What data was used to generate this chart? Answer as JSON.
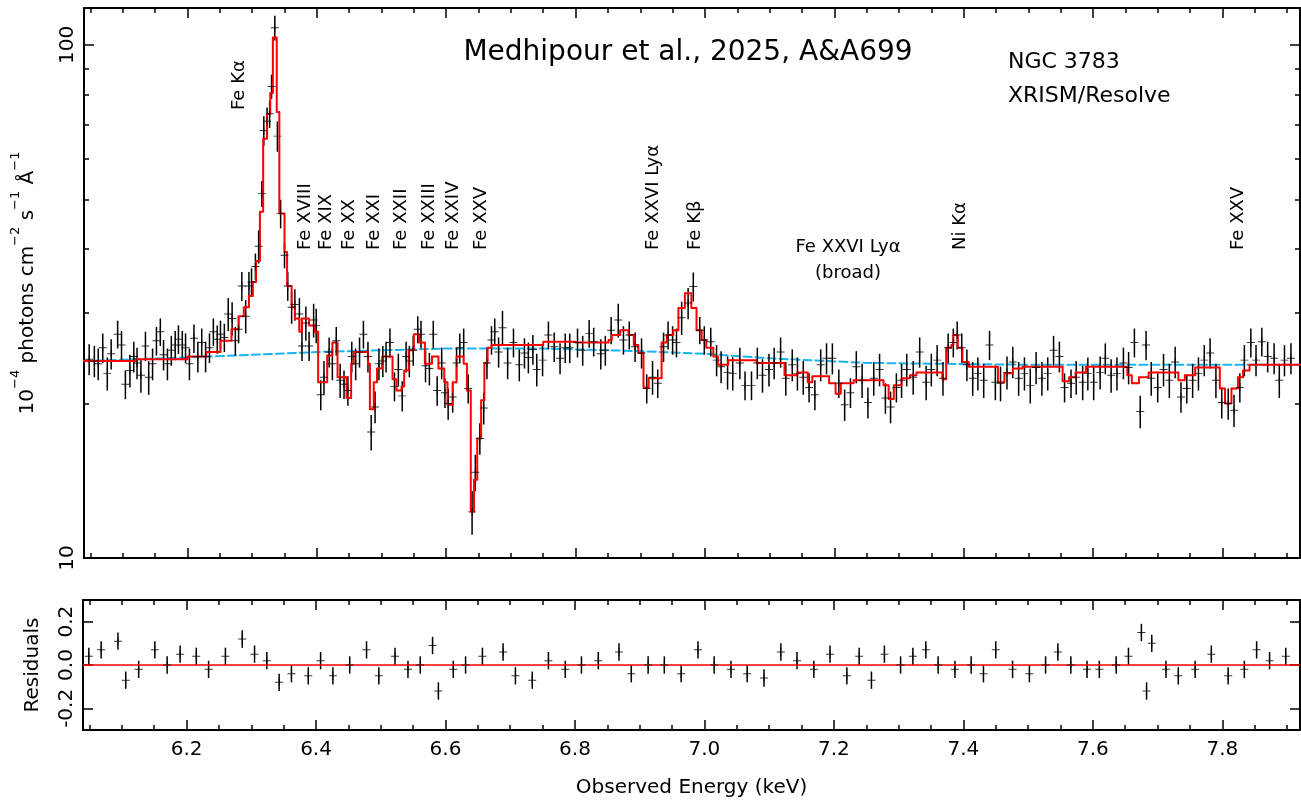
{
  "chart_data": [
    {
      "type": "scatter",
      "ylabel": "10$^{−4}$ photons cm$^{−2}$ s$^{−1}$ Å$^{−1}$",
      "xlim": [
        6.04,
        7.92
      ],
      "xticks": [
        {
          "value": 6.05,
          "label": null
        },
        {
          "value": 6.1,
          "label": null
        },
        {
          "value": 6.15,
          "label": null
        },
        6.2,
        {
          "value": 6.25,
          "label": null
        },
        {
          "value": 6.3,
          "label": null
        },
        {
          "value": 6.35,
          "label": null
        },
        6.4,
        {
          "value": 6.45,
          "label": null
        },
        {
          "value": 6.5,
          "label": null
        },
        {
          "value": 6.55,
          "label": null
        },
        6.6,
        {
          "value": 6.65,
          "label": null
        },
        {
          "value": 6.7,
          "label": null
        },
        {
          "value": 6.75,
          "label": null
        },
        6.8,
        {
          "value": 6.85,
          "label": null
        },
        {
          "value": 6.9,
          "label": null
        },
        {
          "value": 6.95,
          "label": null
        },
        7,
        {
          "value": 7.05,
          "label": null
        },
        {
          "value": 7.1,
          "label": null
        },
        {
          "value": 7.15,
          "label": null
        },
        7.2,
        {
          "value": 7.25,
          "label": null
        },
        {
          "value": 7.3,
          "label": null
        },
        {
          "value": 7.35,
          "label": null
        },
        7.4,
        {
          "value": 7.45,
          "label": null
        },
        {
          "value": 7.5,
          "label": null
        },
        {
          "value": 7.55,
          "label": null
        },
        7.6,
        {
          "value": 7.65,
          "label": null
        },
        {
          "value": 7.7,
          "label": null
        },
        {
          "value": 7.75,
          "label": null
        },
        7.8,
        {
          "value": 7.85,
          "label": null
        },
        {
          "value": 7.9,
          "label": null
        }
      ],
      "ylim": [
        10,
        118
      ],
      "yticks": [
        10,
        {
          "value": 20,
          "label": null
        },
        {
          "value": 30,
          "label": null
        },
        {
          "value": 40,
          "label": null
        },
        {
          "value": 50,
          "label": null
        },
        {
          "value": 60,
          "label": null
        },
        {
          "value": 70,
          "label": null
        },
        {
          "value": 80,
          "label": null
        },
        {
          "value": 90,
          "label": null
        },
        100
      ],
      "log": "y",
      "tick_labels": "y",
      "annotations": [
        "Medhipour et al., 2025, A&A699",
        "NGC 3783",
        "XRISM/Resolve",
        "Fe Kα",
        "Fe XVIII",
        "Fe XIX",
        "Fe XX",
        "Fe XXI",
        "Fe XXII",
        "Fe XXIII",
        "Fe XXIV",
        "Fe XXV",
        "Fe XXVI Lyα",
        "Fe Kβ",
        "Fe XXVI Lyα\n(broad)",
        "Ni Kα",
        "Fe XXV"
      ],
      "series": [
        {
          "color": "#000000",
          "x": [
            6.048,
            6.056,
            6.062,
            6.069,
            6.076,
            6.082,
            6.092,
            6.098,
            6.104,
            6.111,
            6.117,
            6.122,
            6.128,
            6.135,
            6.14,
            6.146,
            6.152,
            6.158,
            6.163,
            6.169,
            6.175,
            6.181,
            6.186,
            6.192,
            6.197,
            6.203,
            6.21,
            6.216,
            6.222,
            6.228,
            6.234,
            6.24,
            6.246,
            6.251,
            6.257,
            6.263,
            6.269,
            6.274,
            6.279,
            6.284,
            6.29,
            6.295,
            6.299,
            6.305,
            6.31,
            6.315,
            6.318,
            6.323,
            6.327,
            6.33,
            6.335,
            6.339,
            6.344,
            6.35,
            6.355,
            6.361,
            6.366,
            6.373,
            6.377,
            6.383,
            6.388,
            6.395,
            6.399,
            6.406,
            6.411,
            6.419,
            6.424,
            6.43,
            6.436,
            6.442,
            6.448,
            6.454,
            6.46,
            6.466,
            6.472,
            6.479,
            6.484,
            6.49,
            6.496,
            6.502,
            6.507,
            6.513,
            6.52,
            6.526,
            6.532,
            6.538,
            6.543,
            6.549,
            6.556,
            6.561,
            6.568,
            6.574,
            6.58,
            6.586,
            6.593,
            6.598,
            6.603,
            6.61,
            6.616,
            6.621,
            6.627,
            6.634,
            6.64,
            6.645,
            6.652,
            6.658,
            6.663,
            6.67,
            6.675,
            6.681,
            6.687,
            6.695,
            6.704,
            6.713,
            6.721,
            6.727,
            6.734,
            6.74,
            6.749,
            6.758,
            6.767,
            6.776,
            6.784,
            6.791,
            6.803,
            6.811,
            6.821,
            6.828,
            6.839,
            6.846,
            6.855,
            6.866,
            6.874,
            6.883,
            6.892,
            6.902,
            6.91,
            6.919,
            6.927,
            6.936,
            6.943,
            6.95,
            6.956,
            6.964,
            6.974,
            6.982,
            6.992,
            6.999,
            7.009,
            7.018,
            7.025,
            7.035,
            7.043,
            7.054,
            7.062,
            7.072,
            7.081,
            7.089,
            7.099,
            7.107,
            7.117,
            7.125,
            7.135,
            7.143,
            7.152,
            7.161,
            7.17,
            7.179,
            7.188,
            7.197,
            7.207,
            7.216,
            7.225,
            7.234,
            7.243,
            7.252,
            7.261,
            7.27,
            7.279,
            7.287,
            7.296,
            7.304,
            7.312,
            7.322,
            7.332,
            7.342,
            7.35,
            7.359,
            7.368,
            7.376,
            7.384,
            7.39,
            7.397,
            7.405,
            7.414,
            7.422,
            7.431,
            7.44,
            7.449,
            7.457,
            7.467,
            7.476,
            7.485,
            7.494,
            7.503,
            7.512,
            7.521,
            7.53,
            7.539,
            7.548,
            7.556,
            7.566,
            7.574,
            7.584,
            7.592,
            7.601,
            7.611,
            7.619,
            7.628,
            7.637,
            7.647,
            7.655,
            7.664,
            7.673,
            7.682,
            7.69,
            7.7,
            7.709,
            7.718,
            7.727,
            7.736,
            7.745,
            7.754,
            7.763,
            7.772,
            7.781,
            7.79,
            7.799,
            7.809,
            7.818,
            7.827,
            7.834,
            7.844,
            7.852,
            7.861,
            7.87,
            7.88,
            7.888,
            7.896,
            7.906
          ],
          "values": [
            24.4,
            24.2,
            23.9,
            25.7,
            22.9,
            25.0,
            27.3,
            26.0,
            21.8,
            23.2,
            24.7,
            24.0,
            22.7,
            25.9,
            22.5,
            23.9,
            26.5,
            27.6,
            24.9,
            23.9,
            25.4,
            26.0,
            26.7,
            26.0,
            25.7,
            23.9,
            26.8,
            24.7,
            26.3,
            24.7,
            25.7,
            27.6,
            26.7,
            27.3,
            26.9,
            29.9,
            29.3,
            26.5,
            27.9,
            33.9,
            29.6,
            33.9,
            34.5,
            37.0,
            40.5,
            51.3,
            68.1,
            71.0,
            73.4,
            83.0,
            108,
            66.4,
            46.9,
            38.9,
            33.9,
            30.8,
            31.2,
            29.9,
            25.9,
            28.7,
            25.9,
            29.1,
            28.4,
            20.8,
            22.5,
            25.2,
            23.9,
            26.5,
            22.2,
            21.8,
            21.2,
            24.7,
            23.9,
            25.2,
            27.3,
            24.7,
            17.6,
            19.7,
            23.9,
            24.2,
            24.7,
            26.3,
            21.6,
            23.3,
            20.7,
            24.7,
            24.2,
            25.4,
            27.9,
            27.3,
            23.7,
            23.4,
            27.3,
            21.2,
            24.0,
            21.0,
            20.0,
            20.6,
            24.0,
            25.7,
            26.3,
            21.4,
            12.3,
            14.7,
            17.1,
            19.6,
            24.0,
            26.6,
            27.6,
            25.2,
            28.1,
            24.0,
            26.3,
            23.8,
            25.1,
            24.6,
            25.5,
            23.3,
            24.3,
            27.2,
            25.8,
            24.5,
            25.7,
            25.7,
            26.3,
            25.4,
            27.4,
            26.4,
            25.0,
            25.4,
            27.8,
            29.1,
            26.6,
            27.2,
            25.8,
            25.1,
            21.4,
            22.5,
            21.9,
            25.8,
            27.2,
            26.6,
            26.3,
            29.4,
            31.4,
            33.8,
            27.8,
            26.6,
            26.4,
            24.3,
            23.6,
            23.0,
            22.9,
            24.0,
            21.7,
            21.7,
            24.0,
            22.7,
            23.3,
            24.0,
            25.2,
            22.4,
            23.8,
            22.9,
            22.5,
            21.5,
            20.8,
            23.8,
            24.5,
            24.5,
            21.9,
            19.9,
            21.0,
            23.6,
            22.2,
            20.1,
            22.4,
            23.3,
            20.5,
            19.7,
            21.5,
            22.2,
            23.3,
            22.5,
            25.2,
            22.0,
            23.3,
            24.3,
            22.4,
            25.7,
            26.3,
            27.2,
            25.7,
            23.8,
            22.4,
            22.9,
            22.2,
            26.0,
            22.0,
            21.9,
            23.0,
            24.1,
            22.4,
            22.9,
            21.7,
            23.5,
            22.4,
            22.9,
            25.4,
            24.7,
            21.5,
            21.9,
            22.5,
            22.0,
            22.9,
            22.0,
            23.0,
            24.5,
            22.7,
            22.9,
            24.0,
            23.5,
            26.3,
            19.3,
            26.0,
            22.4,
            21.5,
            23.3,
            22.2,
            24.1,
            20.6,
            21.4,
            22.2,
            22.9,
            24.3,
            25.1,
            22.2,
            20.1,
            20.0,
            19.4,
            21.5,
            24.3,
            26.3,
            24.3,
            26.4,
            24.7,
            24.5,
            22.2,
            24.3,
            24.5
          ],
          "marker": "cross",
          "errors": [
            1.7,
            1.7,
            1.7,
            1.7,
            1.7,
            1.7,
            1.7,
            1.7,
            1.4,
            1.7,
            1.7,
            1.7,
            1.7,
            1.7,
            1.7,
            1.7,
            1.7,
            1.7,
            1.7,
            1.7,
            1.7,
            1.7,
            1.7,
            1.7,
            1.7,
            1.7,
            1.7,
            1.7,
            1.7,
            1.7,
            1.7,
            1.7,
            1.7,
            1.7,
            1.7,
            2.2,
            2.2,
            1.7,
            1.7,
            2.2,
            2.2,
            2.2,
            2.2,
            2.2,
            3,
            3,
            4.5,
            4.5,
            4.5,
            4.5,
            6,
            4.5,
            3,
            2.2,
            2.2,
            2.2,
            2.2,
            2.2,
            1.7,
            2.2,
            1.7,
            2.2,
            2.2,
            1.4,
            1.7,
            1.7,
            1.7,
            1.7,
            1.7,
            1.4,
            1.4,
            1.7,
            1.7,
            1.7,
            1.7,
            1.7,
            1.4,
            1.4,
            1.7,
            1.7,
            1.7,
            1.7,
            1.4,
            1.7,
            1.4,
            1.7,
            1.7,
            1.7,
            1.7,
            1.7,
            1.7,
            1.7,
            1.7,
            1.4,
            1.7,
            1.4,
            1.4,
            1.4,
            1.7,
            1.7,
            1.7,
            1.4,
            1.2,
            1.2,
            1.2,
            1.4,
            1.7,
            1.7,
            1.7,
            1.7,
            2.2,
            1.7,
            1.7,
            1.7,
            1.7,
            1.7,
            1.7,
            1.7,
            1.7,
            1.7,
            1.7,
            1.7,
            1.7,
            1.7,
            1.7,
            1.7,
            1.7,
            1.7,
            1.7,
            1.7,
            1.7,
            2.2,
            1.7,
            1.7,
            1.7,
            1.7,
            1.4,
            1.7,
            1.4,
            1.7,
            1.7,
            1.7,
            1.7,
            2.2,
            2.2,
            2.2,
            1.7,
            1.7,
            1.7,
            1.7,
            1.7,
            1.7,
            1.7,
            1.7,
            1.4,
            1.4,
            1.7,
            1.7,
            1.7,
            1.7,
            1.7,
            1.7,
            1.7,
            1.7,
            1.7,
            1.4,
            1.4,
            1.7,
            1.7,
            1.7,
            1.4,
            1.4,
            1.4,
            1.7,
            1.7,
            1.4,
            1.7,
            1.7,
            1.4,
            1.4,
            1.4,
            1.7,
            1.7,
            1.7,
            1.7,
            1.7,
            1.7,
            1.7,
            1.7,
            1.7,
            1.7,
            1.7,
            1.7,
            1.7,
            1.7,
            1.7,
            1.7,
            1.7,
            1.7,
            1.7,
            1.7,
            1.7,
            1.7,
            1.7,
            1.7,
            1.7,
            1.7,
            1.7,
            1.7,
            1.7,
            1.4,
            1.4,
            1.7,
            1.7,
            1.7,
            1.7,
            1.7,
            1.7,
            1.7,
            1.7,
            1.7,
            1.7,
            1.7,
            1.4,
            1.7,
            1.7,
            1.4,
            1.7,
            1.7,
            1.7,
            1.4,
            1.4,
            1.7,
            1.7,
            1.7,
            1.7,
            1.7,
            1.4,
            1.4,
            1.4,
            1.4,
            1.7,
            1.7,
            1.7,
            1.7,
            1.7,
            1.7,
            1.7,
            1.7,
            1.7
          ]
        },
        {
          "type": "step",
          "color": "#ff0000",
          "x": [
            6.04,
            6.12,
            6.2,
            6.229,
            6.251,
            6.268,
            6.279,
            6.287,
            6.295,
            6.301,
            6.306,
            6.312,
            6.317,
            6.323,
            6.328,
            6.332,
            6.338,
            6.342,
            6.35,
            6.354,
            6.361,
            6.366,
            6.373,
            6.377,
            6.388,
            6.397,
            6.402,
            6.416,
            6.424,
            6.432,
            6.446,
            6.453,
            6.457,
            6.479,
            6.482,
            6.488,
            6.493,
            6.501,
            6.517,
            6.523,
            6.531,
            6.535,
            6.542,
            6.55,
            6.558,
            6.567,
            6.578,
            6.588,
            6.597,
            6.602,
            6.61,
            6.616,
            6.627,
            6.632,
            6.638,
            6.643,
            6.648,
            6.654,
            6.659,
            6.664,
            6.67,
            6.75,
            6.8,
            6.851,
            6.856,
            6.869,
            6.882,
            6.89,
            6.897,
            6.905,
            6.913,
            6.933,
            6.941,
            6.951,
            6.959,
            6.969,
            6.979,
            6.987,
            6.995,
            7.002,
            7.013,
            7.02,
            7.036,
            7.08,
            7.123,
            7.143,
            7.159,
            7.166,
            7.192,
            7.202,
            7.21,
            7.23,
            7.276,
            7.284,
            7.292,
            7.304,
            7.317,
            7.327,
            7.367,
            7.373,
            7.381,
            7.384,
            7.391,
            7.398,
            7.408,
            7.453,
            7.463,
            7.476,
            7.491,
            7.553,
            7.563,
            7.573,
            7.589,
            7.653,
            7.66,
            7.671,
            7.686,
            7.732,
            7.742,
            7.758,
            7.796,
            7.804,
            7.814,
            7.824,
            7.832,
            7.842,
            7.92
          ],
          "values": [
            24.2,
            24.4,
            24.7,
            25.2,
            26.5,
            27.9,
            29.6,
            30.8,
            32.4,
            34.5,
            37.9,
            47.3,
            65.6,
            73.4,
            80.6,
            103.4,
            74.0,
            46.9,
            39.5,
            33.9,
            30.8,
            29.3,
            27.6,
            29.3,
            28.4,
            27.6,
            22.0,
            24.8,
            26.3,
            22.5,
            20.5,
            23.9,
            25.2,
            23.9,
            19.5,
            22.0,
            23.4,
            24.7,
            22.3,
            21.2,
            21.6,
            23.2,
            25.4,
            27.3,
            26.3,
            23.9,
            24.7,
            23.4,
            22.0,
            19.9,
            22.0,
            24.7,
            23.9,
            21.2,
            12.3,
            14.2,
            17.1,
            20.3,
            24.0,
            25.7,
            26.0,
            26.4,
            26.3,
            26.6,
            27.2,
            27.8,
            27.2,
            26.0,
            25.1,
            21.5,
            22.4,
            26.3,
            27.2,
            27.8,
            30.7,
            32.8,
            30.7,
            27.8,
            26.6,
            25.7,
            24.7,
            23.8,
            24.3,
            24.0,
            22.7,
            23.0,
            22.0,
            22.6,
            21.9,
            20.9,
            21.9,
            22.2,
            21.7,
            20.4,
            21.7,
            22.4,
            22.7,
            23.0,
            22.3,
            25.7,
            26.0,
            27.2,
            25.7,
            24.1,
            23.6,
            22.0,
            22.9,
            23.4,
            23.6,
            22.1,
            22.5,
            23.0,
            23.6,
            22.7,
            21.9,
            22.5,
            23.0,
            22.2,
            22.7,
            23.5,
            21.4,
            20.0,
            21.4,
            22.5,
            23.2,
            23.8,
            23.8
          ]
        },
        {
          "type": "line",
          "color": "#1ab4f0",
          "line_style": "dashed",
          "x": [
            6.04,
            6.2,
            6.4,
            6.6,
            6.75,
            6.9,
            7.0,
            7.1,
            7.25,
            7.5,
            7.92
          ],
          "values": [
            24.2,
            24.6,
            25.2,
            25.6,
            25.6,
            25.3,
            25.0,
            24.5,
            24.0,
            23.8,
            23.8
          ]
        }
      ]
    },
    {
      "type": "scatter",
      "xlabel": "Observed Energy (keV)",
      "ylabel": "Residuals",
      "xlim": [
        6.04,
        7.92
      ],
      "xticks": [
        {
          "value": 6.05,
          "label": null
        },
        {
          "value": 6.1,
          "label": null
        },
        {
          "value": 6.15,
          "label": null
        },
        6.2,
        {
          "value": 6.25,
          "label": null
        },
        {
          "value": 6.3,
          "label": null
        },
        {
          "value": 6.35,
          "label": null
        },
        6.4,
        {
          "value": 6.45,
          "label": null
        },
        {
          "value": 6.5,
          "label": null
        },
        {
          "value": 6.55,
          "label": null
        },
        6.6,
        {
          "value": 6.65,
          "label": null
        },
        {
          "value": 6.7,
          "label": null
        },
        {
          "value": 6.75,
          "label": null
        },
        6.8,
        {
          "value": 6.85,
          "label": null
        },
        {
          "value": 6.9,
          "label": null
        },
        {
          "value": 6.95,
          "label": null
        },
        {
          "value": 7,
          "label": "7.0"
        },
        {
          "value": 7.05,
          "label": null
        },
        {
          "value": 7.1,
          "label": null
        },
        {
          "value": 7.15,
          "label": null
        },
        7.2,
        {
          "value": 7.25,
          "label": null
        },
        {
          "value": 7.3,
          "label": null
        },
        {
          "value": 7.35,
          "label": null
        },
        7.4,
        {
          "value": 7.45,
          "label": null
        },
        {
          "value": 7.5,
          "label": null
        },
        {
          "value": 7.55,
          "label": null
        },
        7.6,
        {
          "value": 7.65,
          "label": null
        },
        {
          "value": 7.7,
          "label": null
        },
        {
          "value": 7.75,
          "label": null
        },
        7.8,
        {
          "value": 7.85,
          "label": null
        },
        {
          "value": 7.9,
          "label": null
        }
      ],
      "ylim": [
        -0.3,
        0.3
      ],
      "yticks": [
        -0.2,
        {
          "value": 0,
          "label": "0.0"
        },
        0.2
      ],
      "ref_lines": [
        {
          "axis": "y",
          "value": 0,
          "color": "#ff0000"
        }
      ],
      "series": [
        {
          "color": "#000000",
          "marker": "cross",
          "x": [
            6.049,
            6.068,
            6.094,
            6.106,
            6.126,
            6.151,
            6.17,
            6.19,
            6.215,
            6.234,
            6.26,
            6.286,
            6.305,
            6.324,
            6.343,
            6.362,
            6.388,
            6.407,
            6.426,
            6.452,
            6.478,
            6.497,
            6.522,
            6.542,
            6.561,
            6.58,
            6.589,
            6.612,
            6.631,
            6.657,
            6.689,
            6.708,
            6.734,
            6.759,
            6.785,
            6.81,
            6.836,
            6.868,
            6.887,
            6.913,
            6.938,
            6.964,
            6.99,
            7.015,
            7.041,
            7.066,
            7.092,
            7.118,
            7.143,
            7.169,
            7.194,
            7.22,
            7.239,
            7.258,
            7.278,
            7.303,
            7.322,
            7.342,
            7.361,
            7.387,
            7.412,
            7.431,
            7.45,
            7.476,
            7.502,
            7.527,
            7.546,
            7.566,
            7.591,
            7.61,
            7.636,
            7.655,
            7.675,
            7.683,
            7.691,
            7.713,
            7.732,
            7.758,
            7.783,
            7.809,
            7.834,
            7.853,
            7.873,
            7.898
          ],
          "values": [
            0.04,
            0.07,
            0.11,
            -0.07,
            -0.02,
            0.07,
            0.0,
            0.05,
            0.04,
            -0.02,
            0.04,
            0.12,
            0.05,
            0.02,
            -0.08,
            -0.04,
            -0.05,
            0.02,
            -0.05,
            0.0,
            0.07,
            -0.05,
            0.04,
            -0.02,
            0.0,
            0.09,
            -0.12,
            -0.02,
            0.0,
            0.04,
            0.06,
            -0.05,
            -0.07,
            0.02,
            -0.02,
            0.0,
            0.02,
            0.06,
            -0.04,
            0.0,
            0.0,
            -0.04,
            0.07,
            0.0,
            -0.02,
            -0.04,
            -0.06,
            0.06,
            0.02,
            -0.02,
            0.05,
            -0.05,
            0.04,
            -0.07,
            0.05,
            0.0,
            0.04,
            0.07,
            0.0,
            -0.02,
            0.0,
            -0.04,
            0.07,
            -0.02,
            -0.04,
            0.0,
            0.06,
            0.0,
            -0.02,
            -0.02,
            0.0,
            0.04,
            0.15,
            -0.12,
            0.1,
            -0.02,
            -0.05,
            -0.02,
            0.05,
            -0.05,
            -0.02,
            0.07,
            0.02,
            0.04
          ],
          "errors": [
            0.04,
            0.04,
            0.04,
            0.04,
            0.04,
            0.04,
            0.04,
            0.04,
            0.04,
            0.04,
            0.04,
            0.04,
            0.04,
            0.04,
            0.04,
            0.04,
            0.04,
            0.04,
            0.04,
            0.04,
            0.04,
            0.04,
            0.04,
            0.04,
            0.04,
            0.04,
            0.04,
            0.04,
            0.04,
            0.04,
            0.04,
            0.04,
            0.04,
            0.04,
            0.04,
            0.04,
            0.04,
            0.04,
            0.04,
            0.04,
            0.04,
            0.04,
            0.04,
            0.04,
            0.04,
            0.04,
            0.04,
            0.04,
            0.04,
            0.04,
            0.04,
            0.04,
            0.04,
            0.04,
            0.04,
            0.04,
            0.04,
            0.04,
            0.04,
            0.04,
            0.04,
            0.04,
            0.04,
            0.04,
            0.04,
            0.04,
            0.04,
            0.04,
            0.04,
            0.04,
            0.04,
            0.04,
            0.04,
            0.04,
            0.04,
            0.04,
            0.04,
            0.04,
            0.04,
            0.04,
            0.04,
            0.04,
            0.04,
            0.04
          ]
        }
      ]
    }
  ]
}
